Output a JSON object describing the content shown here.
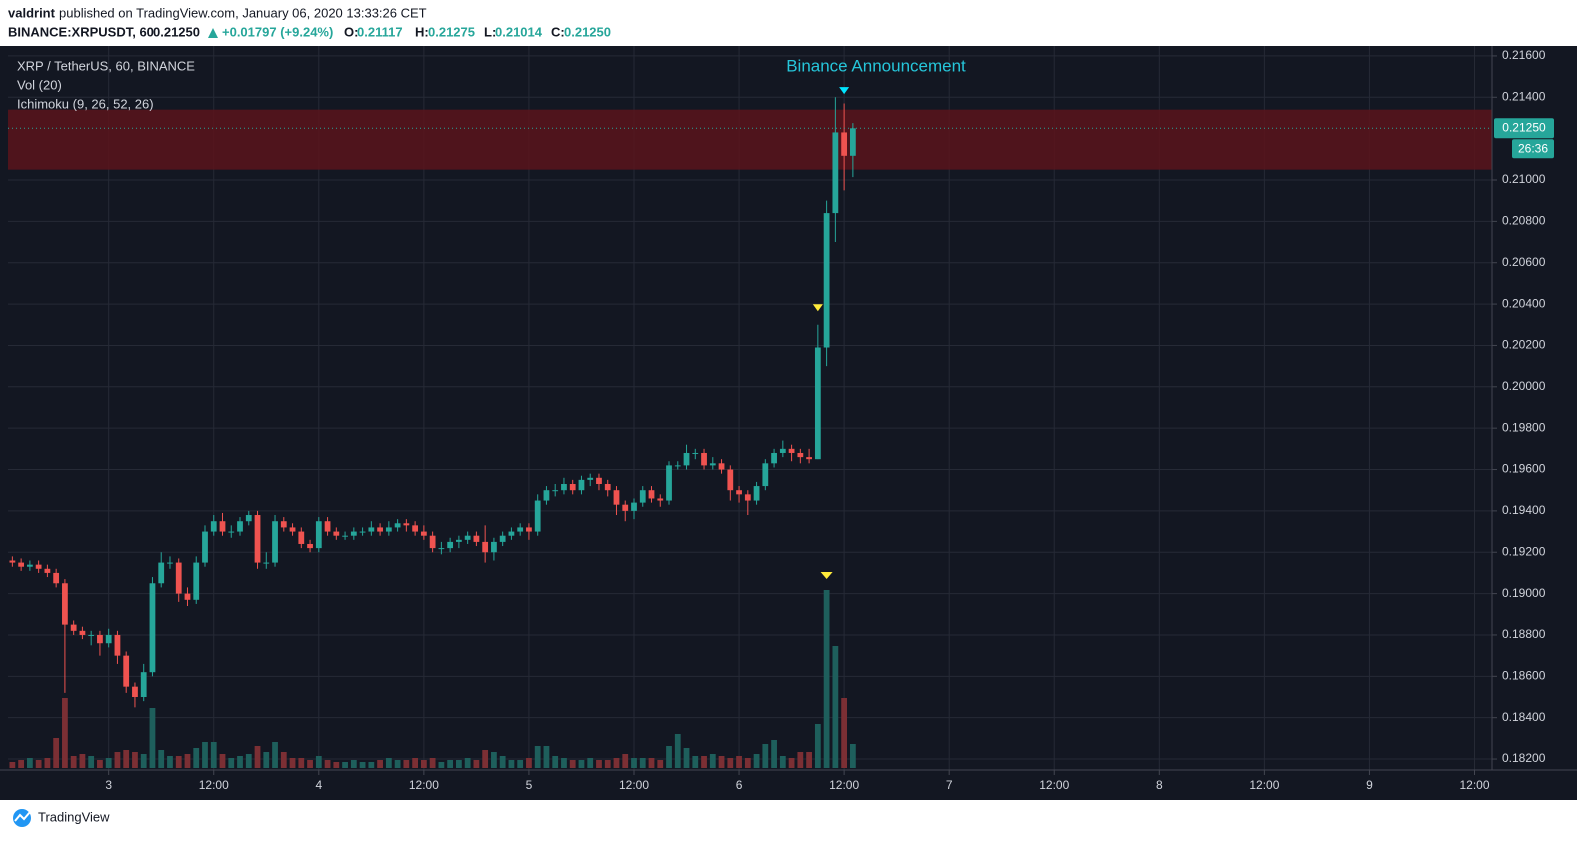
{
  "header": {
    "author": "valdrint",
    "published": "published on TradingView.com, January 06, 2020 13:33:26 CET",
    "symbol": "BINANCE:XRPUSDT, 60",
    "last": "0.21250",
    "change": "+0.01797 (+9.24%)",
    "ohlc": [
      {
        "label": "O:",
        "value": "0.21117"
      },
      {
        "label": "H:",
        "value": "0.21275"
      },
      {
        "label": "L:",
        "value": "0.21014"
      },
      {
        "label": "C:",
        "value": "0.21250"
      }
    ]
  },
  "chart_data": {
    "type": "candlestick",
    "legend": [
      "XRP / TetherUS, 60, BINANCE",
      "Vol (20)",
      "Ichimoku (9, 26, 52, 26)"
    ],
    "annotation": "Binance Announcement",
    "x": [
      "2 13:00",
      "2 14:00",
      "2 15:00",
      "2 16:00",
      "2 17:00",
      "2 18:00",
      "2 19:00",
      "2 20:00",
      "2 21:00",
      "2 22:00",
      "2 23:00",
      "3 00:00",
      "3 01:00",
      "3 02:00",
      "3 03:00",
      "3 04:00",
      "3 05:00",
      "3 06:00",
      "3 07:00",
      "3 08:00",
      "3 09:00",
      "3 10:00",
      "3 11:00",
      "3 12:00",
      "3 13:00",
      "3 14:00",
      "3 15:00",
      "3 16:00",
      "3 17:00",
      "3 18:00",
      "3 19:00",
      "3 20:00",
      "3 21:00",
      "3 22:00",
      "3 23:00",
      "4 00:00",
      "4 01:00",
      "4 02:00",
      "4 03:00",
      "4 04:00",
      "4 05:00",
      "4 06:00",
      "4 07:00",
      "4 08:00",
      "4 09:00",
      "4 10:00",
      "4 11:00",
      "4 12:00",
      "4 13:00",
      "4 14:00",
      "4 15:00",
      "4 16:00",
      "4 17:00",
      "4 18:00",
      "4 19:00",
      "4 20:00",
      "4 21:00",
      "4 22:00",
      "4 23:00",
      "5 00:00",
      "5 01:00",
      "5 02:00",
      "5 03:00",
      "5 04:00",
      "5 05:00",
      "5 06:00",
      "5 07:00",
      "5 08:00",
      "5 09:00",
      "5 10:00",
      "5 11:00",
      "5 12:00",
      "5 13:00",
      "5 14:00",
      "5 15:00",
      "5 16:00",
      "5 17:00",
      "5 18:00",
      "5 19:00",
      "5 20:00",
      "5 21:00",
      "5 22:00",
      "5 23:00",
      "6 00:00",
      "6 01:00",
      "6 02:00",
      "6 03:00",
      "6 04:00",
      "6 05:00",
      "6 06:00",
      "6 07:00",
      "6 08:00",
      "6 09:00",
      "6 10:00",
      "6 11:00",
      "6 12:00",
      "6 13:00"
    ],
    "open": [
      0.1916,
      0.1915,
      0.1913,
      0.1914,
      0.1912,
      0.191,
      0.1905,
      0.1885,
      0.1882,
      0.188,
      0.188,
      0.1876,
      0.188,
      0.187,
      0.1855,
      0.185,
      0.1862,
      0.1905,
      0.1915,
      0.1915,
      0.19,
      0.1897,
      0.1915,
      0.193,
      0.1935,
      0.193,
      0.193,
      0.1935,
      0.1938,
      0.1915,
      0.1915,
      0.1935,
      0.1932,
      0.193,
      0.1924,
      0.1922,
      0.1935,
      0.193,
      0.1928,
      0.1928,
      0.193,
      0.193,
      0.1932,
      0.193,
      0.1932,
      0.1934,
      0.1933,
      0.193,
      0.1928,
      0.1922,
      0.1922,
      0.1925,
      0.1926,
      0.1928,
      0.1925,
      0.192,
      0.1925,
      0.1928,
      0.193,
      0.1932,
      0.193,
      0.1945,
      0.195,
      0.195,
      0.1953,
      0.195,
      0.1955,
      0.1956,
      0.1953,
      0.195,
      0.1943,
      0.194,
      0.1944,
      0.195,
      0.1946,
      0.1945,
      0.1962,
      0.1962,
      0.1968,
      0.1968,
      0.1962,
      0.1963,
      0.196,
      0.195,
      0.1948,
      0.1945,
      0.1952,
      0.1963,
      0.1968,
      0.197,
      0.1968,
      0.1966,
      0.1965,
      0.2019,
      0.2084,
      0.2123,
      0.21117
    ],
    "high": [
      0.1918,
      0.1917,
      0.1916,
      0.1916,
      0.1914,
      0.1912,
      0.1907,
      0.1887,
      0.1884,
      0.1882,
      0.1882,
      0.1883,
      0.1882,
      0.1872,
      0.1857,
      0.1866,
      0.1908,
      0.192,
      0.1918,
      0.1917,
      0.1903,
      0.1918,
      0.1933,
      0.1938,
      0.1939,
      0.1933,
      0.1937,
      0.194,
      0.194,
      0.192,
      0.1938,
      0.1937,
      0.1934,
      0.1932,
      0.1926,
      0.1937,
      0.1937,
      0.1932,
      0.193,
      0.1932,
      0.1932,
      0.1935,
      0.1934,
      0.1935,
      0.1936,
      0.1936,
      0.1935,
      0.1933,
      0.193,
      0.1925,
      0.1927,
      0.1928,
      0.193,
      0.193,
      0.1933,
      0.1927,
      0.193,
      0.1932,
      0.1934,
      0.1934,
      0.1948,
      0.1952,
      0.1953,
      0.1956,
      0.1955,
      0.1957,
      0.1958,
      0.1958,
      0.1955,
      0.1952,
      0.1945,
      0.1946,
      0.1952,
      0.1952,
      0.1948,
      0.1964,
      0.1964,
      0.1972,
      0.197,
      0.197,
      0.1966,
      0.1965,
      0.1962,
      0.1952,
      0.195,
      0.1954,
      0.1965,
      0.197,
      0.1974,
      0.1972,
      0.197,
      0.197,
      0.203,
      0.209,
      0.214,
      0.2137,
      0.21275
    ],
    "low": [
      0.1913,
      0.1911,
      0.1911,
      0.191,
      0.1908,
      0.1903,
      0.1852,
      0.188,
      0.1878,
      0.1875,
      0.187,
      0.1874,
      0.1866,
      0.1852,
      0.1845,
      0.1848,
      0.186,
      0.1903,
      0.1912,
      0.1896,
      0.1894,
      0.1895,
      0.1913,
      0.1928,
      0.1928,
      0.1927,
      0.1928,
      0.1933,
      0.1912,
      0.1912,
      0.1913,
      0.193,
      0.1928,
      0.1922,
      0.192,
      0.192,
      0.1928,
      0.1926,
      0.1926,
      0.1926,
      0.1928,
      0.1928,
      0.1928,
      0.1928,
      0.193,
      0.193,
      0.1928,
      0.1926,
      0.192,
      0.1919,
      0.192,
      0.1922,
      0.1924,
      0.1923,
      0.1915,
      0.1916,
      0.1923,
      0.1926,
      0.1928,
      0.1926,
      0.1928,
      0.1943,
      0.1947,
      0.1948,
      0.1948,
      0.1948,
      0.1952,
      0.195,
      0.1947,
      0.1938,
      0.1935,
      0.1936,
      0.1942,
      0.1944,
      0.1942,
      0.1943,
      0.196,
      0.196,
      0.1965,
      0.196,
      0.196,
      0.1958,
      0.1945,
      0.1944,
      0.1938,
      0.1943,
      0.195,
      0.1961,
      0.1966,
      0.1964,
      0.1963,
      0.1963,
      0.1965,
      0.201,
      0.207,
      0.2095,
      0.21014
    ],
    "close": [
      0.1915,
      0.1913,
      0.1914,
      0.1912,
      0.191,
      0.1905,
      0.1885,
      0.1882,
      0.188,
      0.188,
      0.1876,
      0.188,
      0.187,
      0.1855,
      0.185,
      0.1862,
      0.1905,
      0.1915,
      0.1915,
      0.19,
      0.1897,
      0.1915,
      0.193,
      0.1935,
      0.193,
      0.193,
      0.1935,
      0.1938,
      0.1915,
      0.1915,
      0.1935,
      0.1932,
      0.193,
      0.1924,
      0.1922,
      0.1935,
      0.193,
      0.1928,
      0.1928,
      0.193,
      0.193,
      0.1932,
      0.193,
      0.1932,
      0.1934,
      0.1933,
      0.193,
      0.1928,
      0.1922,
      0.1922,
      0.1925,
      0.1926,
      0.1928,
      0.1925,
      0.192,
      0.1925,
      0.1928,
      0.193,
      0.1932,
      0.193,
      0.1945,
      0.195,
      0.195,
      0.1953,
      0.195,
      0.1955,
      0.1956,
      0.1953,
      0.195,
      0.1943,
      0.194,
      0.1944,
      0.195,
      0.1946,
      0.1945,
      0.1962,
      0.1962,
      0.1968,
      0.1968,
      0.1962,
      0.1963,
      0.196,
      0.195,
      0.1948,
      0.1945,
      0.1952,
      0.1963,
      0.1968,
      0.197,
      0.1968,
      0.1966,
      0.1965,
      0.2019,
      0.2084,
      0.2123,
      0.21117,
      0.2125
    ],
    "volume": [
      0.3,
      0.4,
      0.5,
      0.4,
      0.5,
      1.5,
      3.5,
      0.6,
      0.7,
      0.6,
      0.4,
      0.5,
      0.8,
      0.9,
      0.8,
      0.7,
      3.0,
      0.9,
      0.6,
      0.6,
      0.7,
      1.0,
      1.3,
      1.3,
      0.7,
      0.5,
      0.6,
      0.7,
      1.1,
      0.8,
      1.3,
      0.8,
      0.5,
      0.5,
      0.4,
      0.6,
      0.4,
      0.3,
      0.3,
      0.4,
      0.3,
      0.3,
      0.4,
      0.5,
      0.4,
      0.4,
      0.5,
      0.4,
      0.5,
      0.3,
      0.4,
      0.4,
      0.5,
      0.4,
      0.9,
      0.8,
      0.6,
      0.4,
      0.4,
      0.5,
      1.1,
      1.1,
      0.6,
      0.5,
      0.4,
      0.4,
      0.5,
      0.4,
      0.4,
      0.5,
      0.7,
      0.5,
      0.5,
      0.5,
      0.4,
      1.1,
      1.7,
      1.0,
      0.6,
      0.6,
      0.7,
      0.6,
      0.5,
      0.6,
      0.5,
      0.7,
      1.2,
      1.4,
      0.6,
      0.5,
      0.8,
      0.8,
      2.2,
      8.9,
      6.1,
      3.5,
      1.2
    ],
    "up_color": "#26a69a",
    "down_color": "#ef5350",
    "volume_up_color": "#1e5f5c",
    "volume_down_color": "#7b2f34",
    "vol_ylim": [
      0,
      10
    ],
    "ylim": [
      0.18147,
      0.21648
    ],
    "yticks": [
      {
        "value": 0.182,
        "label": "0.18200"
      },
      {
        "value": 0.184,
        "label": "0.18400"
      },
      {
        "value": 0.186,
        "label": "0.18600"
      },
      {
        "value": 0.188,
        "label": "0.18800"
      },
      {
        "value": 0.19,
        "label": "0.19000"
      },
      {
        "value": 0.192,
        "label": "0.19200"
      },
      {
        "value": 0.194,
        "label": "0.19400"
      },
      {
        "value": 0.196,
        "label": "0.19600"
      },
      {
        "value": 0.198,
        "label": "0.19800"
      },
      {
        "value": 0.2,
        "label": "0.20000"
      },
      {
        "value": 0.202,
        "label": "0.20200"
      },
      {
        "value": 0.204,
        "label": "0.20400"
      },
      {
        "value": 0.206,
        "label": "0.20600"
      },
      {
        "value": 0.208,
        "label": "0.20800"
      },
      {
        "value": 0.21,
        "label": "0.21000"
      },
      {
        "value": 0.214,
        "label": "0.21400"
      },
      {
        "value": 0.216,
        "label": "0.21600"
      }
    ],
    "xlim": [
      "2 12:30",
      "9 14:00"
    ],
    "xticks": [
      {
        "value": "3 00:00",
        "label": "3"
      },
      {
        "value": "3 12:00",
        "label": "12:00"
      },
      {
        "value": "4 00:00",
        "label": "4"
      },
      {
        "value": "4 12:00",
        "label": "12:00"
      },
      {
        "value": "5 00:00",
        "label": "5"
      },
      {
        "value": "5 12:00",
        "label": "12:00"
      },
      {
        "value": "6 00:00",
        "label": "6"
      },
      {
        "value": "6 12:00",
        "label": "12:00"
      },
      {
        "value": "7 00:00",
        "label": "7"
      },
      {
        "value": "7 12:00",
        "label": "12:00"
      },
      {
        "value": "8 00:00",
        "label": "8"
      },
      {
        "value": "8 12:00",
        "label": "12:00"
      },
      {
        "value": "9 00:00",
        "label": "9"
      },
      {
        "value": "9 12:00",
        "label": "12:00"
      }
    ],
    "grid": true,
    "zone": {
      "range": [
        0.2105,
        0.2134
      ],
      "color": "#5b141b"
    },
    "last_price": {
      "value": 0.2125,
      "label": "0.21250"
    },
    "countdown": "26:36",
    "markers": [
      {
        "x": "6 09:00",
        "y": 0.2038,
        "color": "#ffeb3b"
      },
      {
        "x": "6 12:00",
        "y": 0.2143,
        "color": "#00e5ff"
      }
    ],
    "volume_marker": {
      "x": "6 10:00",
      "volume": 9.6,
      "color": "#ffeb3b"
    }
  },
  "footer": {
    "brand": "TradingView"
  }
}
